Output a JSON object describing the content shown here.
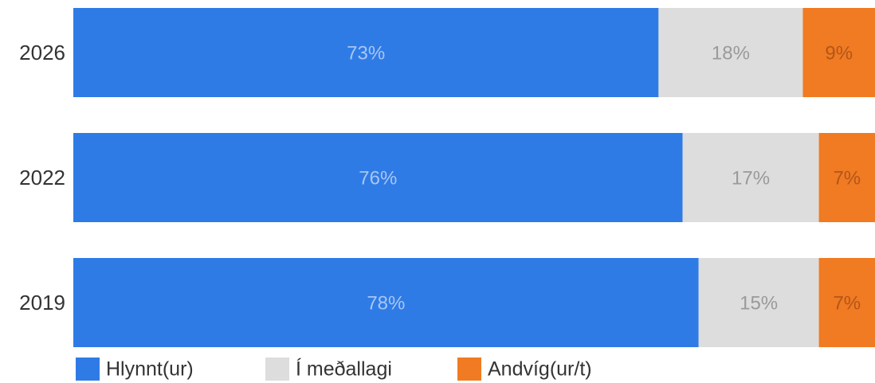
{
  "chart_data": {
    "type": "stacked_barh",
    "categories": [
      "2026",
      "2022",
      "2019"
    ],
    "series": [
      {
        "name": "Hlynnt(ur)",
        "color": "#2f7be6",
        "label_color": "#a8c6f3",
        "values": [
          73,
          76,
          78
        ],
        "value_labels": [
          "73%",
          "76%",
          "78%"
        ]
      },
      {
        "name": "Í meðallagi",
        "color": "#dddddd",
        "label_color": "#9a9a9a",
        "values": [
          18,
          17,
          15
        ],
        "value_labels": [
          "18%",
          "17%",
          "15%"
        ]
      },
      {
        "name": "Andvíg(ur/t)",
        "color": "#f07b22",
        "label_color": "#b4551a",
        "values": [
          9,
          7,
          7
        ],
        "value_labels": [
          "9%",
          "7%",
          "7%"
        ]
      }
    ],
    "legend": "bottom"
  }
}
